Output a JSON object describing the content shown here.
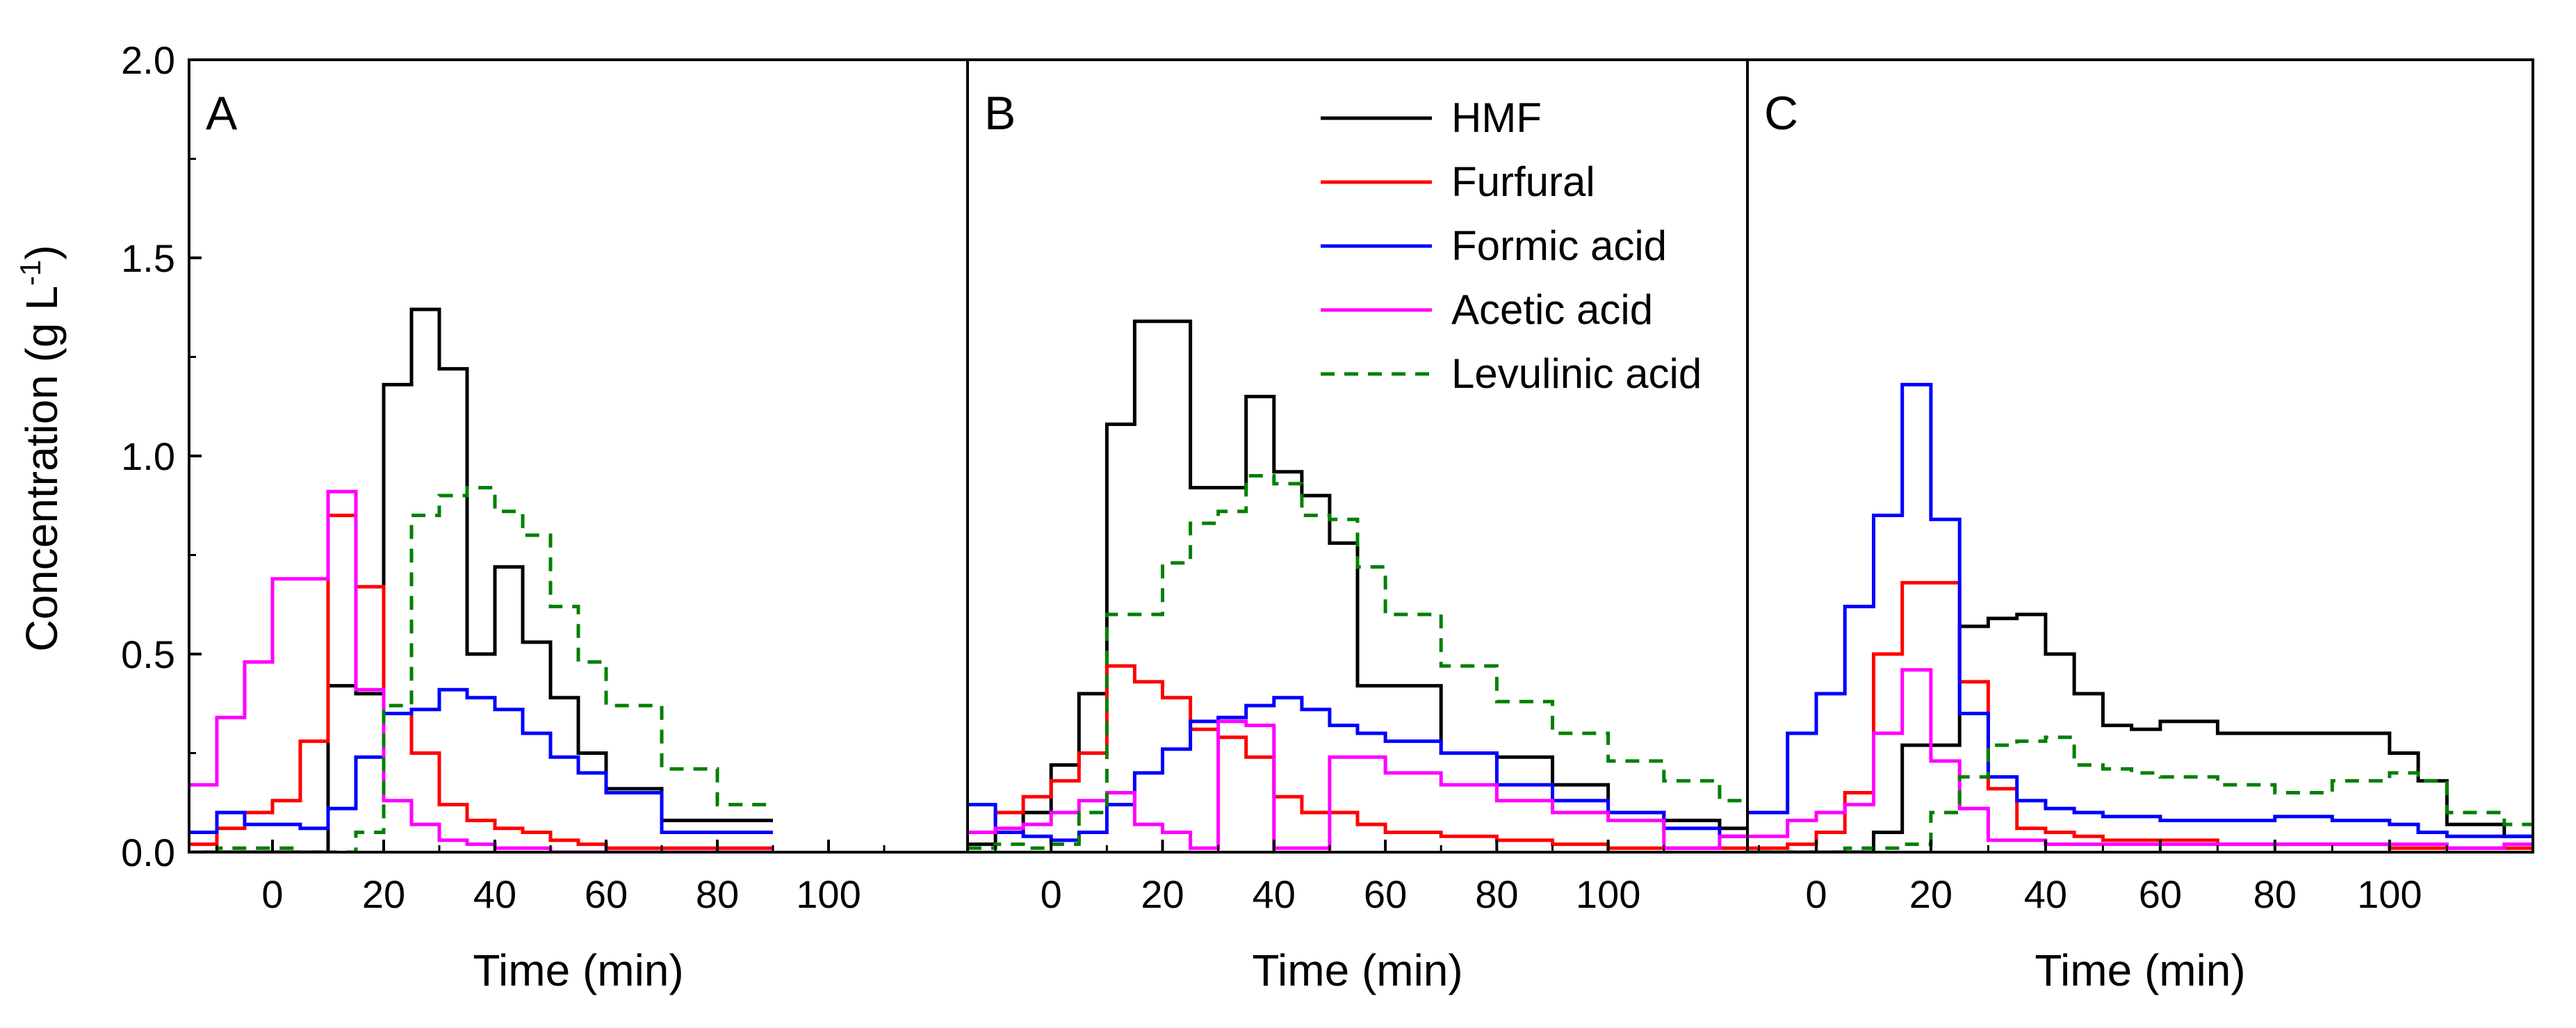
{
  "chart_data": {
    "type": "line",
    "style": "step",
    "ylabel": "Concentration (g L",
    "ylabel_superscript": "-1",
    "ylabel_close": ")",
    "ylim": [
      0,
      2.0
    ],
    "yticks": [
      "0.0",
      "0.5",
      "1.0",
      "1.5",
      "2.0"
    ],
    "yticks_values": [
      0,
      0.5,
      1.0,
      1.5,
      2.0
    ],
    "legend": {
      "placement": "panel B, top-right",
      "entries": [
        {
          "name": "HMF",
          "color": "#000000",
          "dash": "solid"
        },
        {
          "name": "Furfural",
          "color": "#ff0000",
          "dash": "solid"
        },
        {
          "name": "Formic acid",
          "color": "#0000ff",
          "dash": "solid"
        },
        {
          "name": "Acetic acid",
          "color": "#ff00ff",
          "dash": "solid"
        },
        {
          "name": "Levulinic acid",
          "color": "#008000",
          "dash": "dashed"
        }
      ]
    },
    "panels": [
      {
        "label": "A",
        "xlabel": "Time (min)",
        "xlim": [
          -15,
          125
        ],
        "xticks": [
          "0",
          "20",
          "40",
          "60",
          "80",
          "100"
        ],
        "xticks_values": [
          0,
          20,
          40,
          60,
          80,
          100
        ],
        "series": [
          {
            "name": "HMF",
            "x": [
              -15,
              -10,
              -5,
              0,
              5,
              10,
              15,
              20,
              25,
              30,
              35,
              40,
              45,
              50,
              55,
              60,
              70,
              80
            ],
            "values": [
              0,
              0,
              0,
              0,
              0,
              0.42,
              0.4,
              1.18,
              1.37,
              1.22,
              0.5,
              0.72,
              0.53,
              0.39,
              0.25,
              0.16,
              0.08,
              0.08
            ]
          },
          {
            "name": "Furfural",
            "x": [
              -15,
              -10,
              -5,
              0,
              5,
              10,
              15,
              20,
              25,
              30,
              35,
              40,
              45,
              50,
              55,
              60,
              70,
              80
            ],
            "values": [
              0.02,
              0.06,
              0.1,
              0.13,
              0.28,
              0.85,
              0.67,
              0.35,
              0.25,
              0.12,
              0.08,
              0.06,
              0.05,
              0.03,
              0.02,
              0.01,
              0.01,
              0.01
            ]
          },
          {
            "name": "Formic acid",
            "x": [
              -15,
              -10,
              -5,
              0,
              5,
              10,
              15,
              20,
              25,
              30,
              35,
              40,
              45,
              50,
              55,
              60,
              70,
              80
            ],
            "values": [
              0.05,
              0.1,
              0.07,
              0.07,
              0.06,
              0.11,
              0.24,
              0.35,
              0.36,
              0.41,
              0.39,
              0.36,
              0.3,
              0.24,
              0.2,
              0.15,
              0.05,
              0.05
            ]
          },
          {
            "name": "Acetic acid",
            "x": [
              -15,
              -10,
              -5,
              0,
              5,
              10,
              15,
              20,
              25,
              30,
              35,
              40,
              45,
              50,
              55,
              60,
              70,
              80
            ],
            "values": [
              0.17,
              0.34,
              0.48,
              0.69,
              0.69,
              0.91,
              0.41,
              0.13,
              0.07,
              0.03,
              0.02,
              0.01,
              0.01,
              0,
              0,
              0,
              0,
              0
            ]
          },
          {
            "name": "Levulinic acid",
            "x": [
              -15,
              -10,
              -5,
              0,
              5,
              10,
              15,
              20,
              25,
              30,
              35,
              40,
              45,
              50,
              55,
              60,
              70,
              80
            ],
            "values": [
              0,
              0.01,
              0.01,
              0.01,
              0,
              0,
              0.05,
              0.37,
              0.85,
              0.9,
              0.92,
              0.86,
              0.8,
              0.62,
              0.48,
              0.37,
              0.21,
              0.12
            ]
          }
        ]
      },
      {
        "label": "B",
        "xlabel": "Time (min)",
        "xlim": [
          -15,
          125
        ],
        "xticks": [
          "0",
          "20",
          "40",
          "60",
          "80",
          "100"
        ],
        "xticks_values": [
          0,
          20,
          40,
          60,
          80,
          100
        ],
        "series": [
          {
            "name": "HMF",
            "x": [
              -15,
              -10,
              -5,
              0,
              5,
              10,
              15,
              20,
              25,
              30,
              35,
              40,
              45,
              50,
              55,
              60,
              70,
              80,
              90,
              100,
              110,
              120
            ],
            "values": [
              0.02,
              0.05,
              0.1,
              0.22,
              0.4,
              1.08,
              1.34,
              1.34,
              0.92,
              0.92,
              1.15,
              0.96,
              0.9,
              0.78,
              0.42,
              0.42,
              0.25,
              0.24,
              0.17,
              0.1,
              0.08,
              0.06
            ]
          },
          {
            "name": "Furfural",
            "x": [
              -15,
              -10,
              -5,
              0,
              5,
              10,
              15,
              20,
              25,
              30,
              35,
              40,
              45,
              50,
              55,
              60,
              70,
              80,
              90,
              100,
              110,
              120
            ],
            "values": [
              0.05,
              0.1,
              0.14,
              0.18,
              0.25,
              0.47,
              0.43,
              0.39,
              0.31,
              0.29,
              0.24,
              0.14,
              0.1,
              0.1,
              0.07,
              0.05,
              0.04,
              0.03,
              0.02,
              0.01,
              0.01,
              0.01
            ]
          },
          {
            "name": "Formic acid",
            "x": [
              -15,
              -10,
              -5,
              0,
              5,
              10,
              15,
              20,
              25,
              30,
              35,
              40,
              45,
              50,
              55,
              60,
              70,
              80,
              90,
              100,
              110,
              120
            ],
            "values": [
              0.12,
              0.05,
              0.04,
              0.03,
              0.05,
              0.12,
              0.2,
              0.26,
              0.33,
              0.34,
              0.37,
              0.39,
              0.36,
              0.32,
              0.3,
              0.28,
              0.25,
              0.17,
              0.13,
              0.1,
              0.06,
              0.04
            ]
          },
          {
            "name": "Acetic acid",
            "x": [
              -15,
              -10,
              -5,
              0,
              5,
              10,
              15,
              20,
              25,
              30,
              35,
              40,
              45,
              50,
              55,
              60,
              70,
              80,
              90,
              100,
              110,
              120
            ],
            "values": [
              0.05,
              0.06,
              0.07,
              0.1,
              0.13,
              0.15,
              0.07,
              0.05,
              0.01,
              0.33,
              0.32,
              0.01,
              0.01,
              0.24,
              0.24,
              0.2,
              0.17,
              0.13,
              0.1,
              0.08,
              0.01,
              0.04
            ]
          },
          {
            "name": "Levulinic acid",
            "x": [
              -15,
              -10,
              -5,
              0,
              5,
              10,
              15,
              20,
              25,
              30,
              35,
              40,
              45,
              50,
              55,
              60,
              70,
              80,
              90,
              100,
              110,
              120
            ],
            "values": [
              0.01,
              0.02,
              0.01,
              0.02,
              0.1,
              0.6,
              0.6,
              0.73,
              0.83,
              0.86,
              0.95,
              0.93,
              0.85,
              0.84,
              0.72,
              0.6,
              0.47,
              0.38,
              0.3,
              0.23,
              0.18,
              0.13
            ]
          }
        ]
      },
      {
        "label": "C",
        "xlabel": "Time (min)",
        "xlim": [
          -12,
          125
        ],
        "xticks": [
          "0",
          "20",
          "40",
          "60",
          "80",
          "100"
        ],
        "xticks_values": [
          0,
          20,
          40,
          60,
          80,
          100
        ],
        "series": [
          {
            "name": "HMF",
            "x": [
              -12,
              -5,
              0,
              5,
              10,
              15,
              20,
              25,
              30,
              35,
              40,
              45,
              50,
              55,
              60,
              70,
              80,
              90,
              100,
              105,
              110,
              120
            ],
            "values": [
              0,
              0,
              0,
              0,
              0.05,
              0.27,
              0.27,
              0.57,
              0.59,
              0.6,
              0.5,
              0.4,
              0.32,
              0.31,
              0.33,
              0.3,
              0.3,
              0.3,
              0.25,
              0.18,
              0.07,
              0.04
            ]
          },
          {
            "name": "Furfural",
            "x": [
              -12,
              -5,
              0,
              5,
              10,
              15,
              20,
              25,
              30,
              35,
              40,
              45,
              50,
              55,
              60,
              70,
              80,
              90,
              100,
              105,
              110,
              120
            ],
            "values": [
              0.01,
              0.02,
              0.05,
              0.15,
              0.5,
              0.68,
              0.68,
              0.43,
              0.16,
              0.06,
              0.05,
              0.04,
              0.03,
              0.03,
              0.03,
              0.02,
              0.02,
              0.02,
              0.01,
              0.01,
              0.01,
              0.01
            ]
          },
          {
            "name": "Formic acid",
            "x": [
              -12,
              -5,
              0,
              5,
              10,
              15,
              20,
              25,
              30,
              35,
              40,
              45,
              50,
              55,
              60,
              70,
              80,
              90,
              100,
              105,
              110,
              120
            ],
            "values": [
              0.1,
              0.3,
              0.4,
              0.62,
              0.85,
              1.18,
              0.84,
              0.35,
              0.19,
              0.13,
              0.11,
              0.1,
              0.09,
              0.09,
              0.08,
              0.08,
              0.09,
              0.08,
              0.07,
              0.05,
              0.04,
              0.04
            ]
          },
          {
            "name": "Acetic acid",
            "x": [
              -12,
              -5,
              0,
              5,
              10,
              15,
              20,
              25,
              30,
              35,
              40,
              45,
              50,
              55,
              60,
              70,
              80,
              90,
              100,
              105,
              110,
              120
            ],
            "values": [
              0.04,
              0.08,
              0.1,
              0.12,
              0.3,
              0.46,
              0.23,
              0.11,
              0.03,
              0.03,
              0.02,
              0.02,
              0.02,
              0.02,
              0.02,
              0.02,
              0.02,
              0.02,
              0.02,
              0.02,
              0.01,
              0.02
            ]
          },
          {
            "name": "Levulinic acid",
            "x": [
              -12,
              -5,
              0,
              5,
              10,
              15,
              20,
              25,
              30,
              35,
              40,
              45,
              50,
              55,
              60,
              70,
              80,
              90,
              100,
              105,
              110,
              120
            ],
            "values": [
              0,
              0,
              0,
              0.01,
              0.01,
              0.02,
              0.1,
              0.19,
              0.27,
              0.28,
              0.29,
              0.22,
              0.21,
              0.2,
              0.19,
              0.17,
              0.15,
              0.18,
              0.2,
              0.18,
              0.1,
              0.07
            ]
          }
        ]
      }
    ]
  }
}
